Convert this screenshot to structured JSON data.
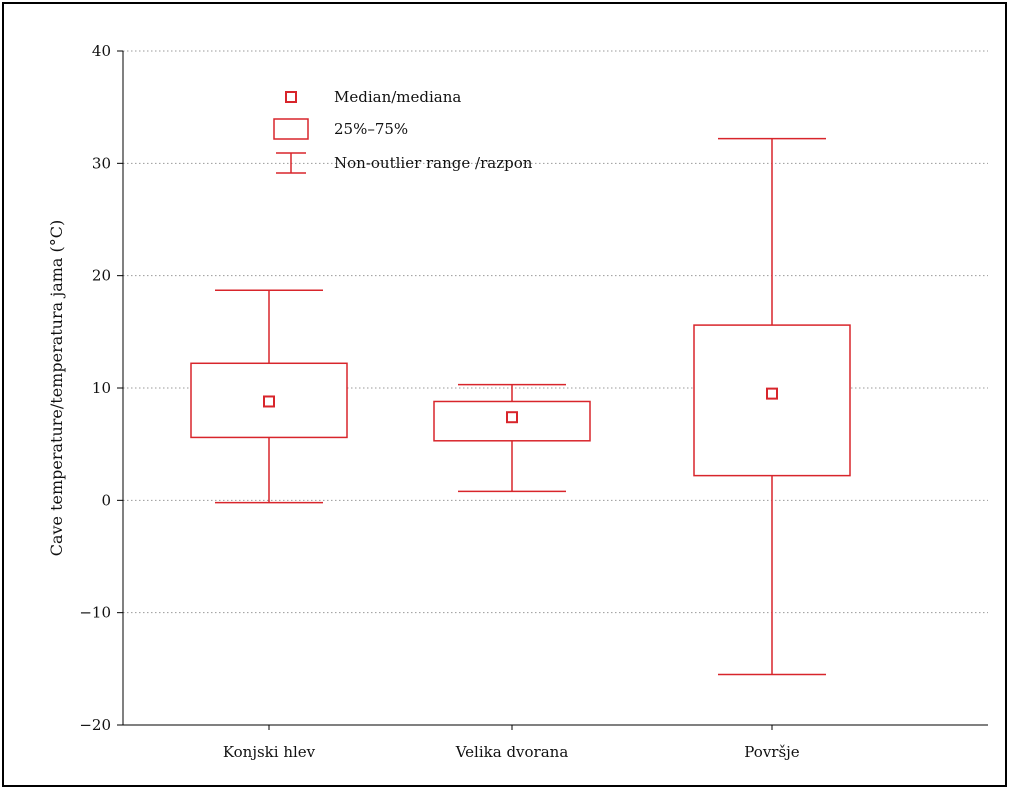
{
  "chart_data": {
    "type": "box",
    "title": "",
    "xlabel": "",
    "ylabel": "Cave temperature/temperatura jama  (°C)",
    "ylim": [
      -20,
      40
    ],
    "yticks": [
      -20,
      -10,
      0,
      10,
      20,
      30,
      40
    ],
    "ytick_labels": [
      "−20",
      "−10",
      "0",
      "10",
      "20",
      "30",
      "40"
    ],
    "grid": "horizontal-dotted",
    "legend_position": "top-left",
    "color": "#d8252b",
    "categories": [
      "Konjski hlev",
      "Velika dvorana",
      "Površje"
    ],
    "boxes": [
      {
        "category": "Konjski hlev",
        "median": 8.8,
        "q1": 5.6,
        "q3": 12.2,
        "whisker_low": -0.2,
        "whisker_high": 18.7
      },
      {
        "category": "Velika dvorana",
        "median": 7.4,
        "q1": 5.3,
        "q3": 8.8,
        "whisker_low": 0.8,
        "whisker_high": 10.3
      },
      {
        "category": "Površje",
        "median": 9.5,
        "q1": 2.2,
        "q3": 15.6,
        "whisker_low": -15.5,
        "whisker_high": 32.2
      }
    ],
    "legend": [
      {
        "symbol": "median-square",
        "label": "Median/mediana"
      },
      {
        "symbol": "box",
        "label": "25%–75%"
      },
      {
        "symbol": "whisker",
        "label": "Non-outlier range /razpon"
      }
    ]
  }
}
